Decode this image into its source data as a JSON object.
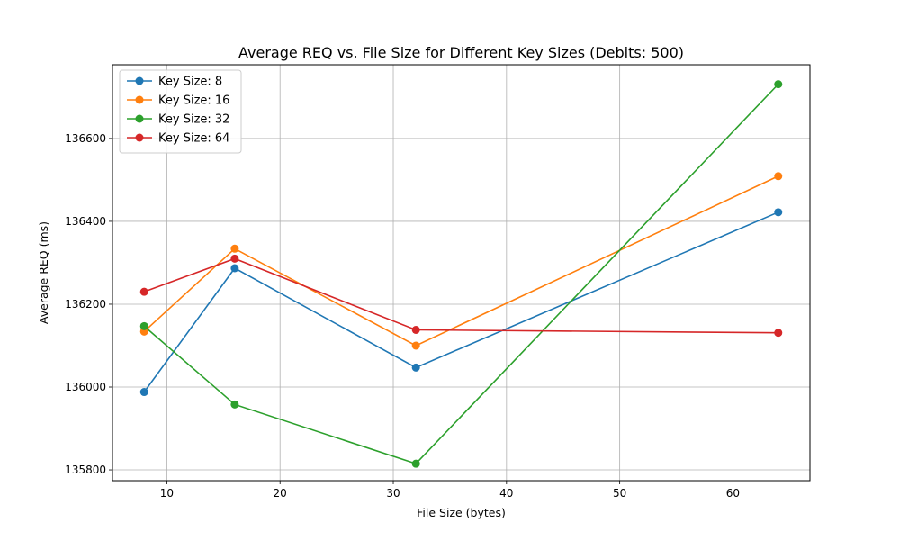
{
  "chart_data": {
    "type": "line",
    "title": "Average REQ vs. File Size for Different Key Sizes (Debits: 500)",
    "xlabel": "File Size (bytes)",
    "ylabel": "Average REQ (ms)",
    "x": [
      8,
      16,
      32,
      64
    ],
    "xlim": [
      5.2,
      66.8
    ],
    "ylim": [
      135774,
      136778
    ],
    "xticks": [
      10,
      20,
      30,
      40,
      50,
      60
    ],
    "yticks": [
      135800,
      136000,
      136200,
      136400,
      136600
    ],
    "grid": true,
    "legend_position": "top-left",
    "series": [
      {
        "name": "Key Size: 8",
        "color": "#1f77b4",
        "values": [
          135988,
          136287,
          136047,
          136422
        ]
      },
      {
        "name": "Key Size: 16",
        "color": "#ff7f0e",
        "values": [
          136134,
          136334,
          136100,
          136509
        ]
      },
      {
        "name": "Key Size: 32",
        "color": "#2ca02c",
        "values": [
          136147,
          135958,
          135815,
          136731
        ]
      },
      {
        "name": "Key Size: 64",
        "color": "#d62728",
        "values": [
          136230,
          136310,
          136138,
          136131
        ]
      }
    ]
  }
}
